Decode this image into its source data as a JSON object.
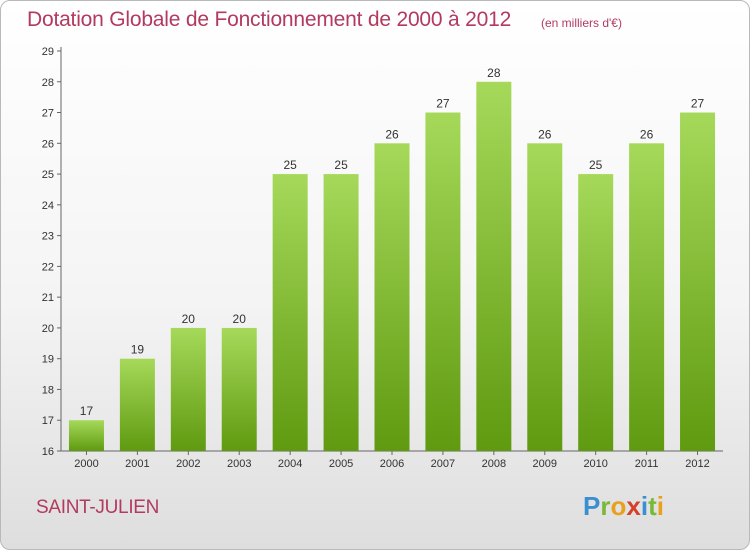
{
  "title": "Dotation Globale de Fonctionnement de 2000 à 2012",
  "unit": "(en milliers d'€)",
  "commune": "SAINT-JULIEN",
  "logo": {
    "letters": [
      "P",
      "r",
      "o",
      "x",
      "i",
      "t",
      "i"
    ],
    "colors": [
      "#3a8fd0",
      "#7ab83a",
      "#e8a11c",
      "#d6402a",
      "#3a8fd0",
      "#7ab83a",
      "#e8a11c"
    ]
  },
  "colors": {
    "bar_top": "#a6d95a",
    "bar_bottom": "#5f9a10",
    "axis": "#666666",
    "text": "#333333",
    "accent": "#b23a60"
  },
  "chart_data": {
    "type": "bar",
    "categories": [
      "2000",
      "2001",
      "2002",
      "2003",
      "2004",
      "2005",
      "2006",
      "2007",
      "2008",
      "2009",
      "2010",
      "2011",
      "2012"
    ],
    "values": [
      17,
      19,
      20,
      20,
      25,
      25,
      26,
      27,
      28,
      26,
      25,
      26,
      27
    ],
    "yticks": [
      16,
      17,
      18,
      19,
      20,
      21,
      22,
      23,
      24,
      25,
      26,
      27,
      28,
      29
    ],
    "ylim": [
      16,
      29
    ],
    "grid": false
  }
}
